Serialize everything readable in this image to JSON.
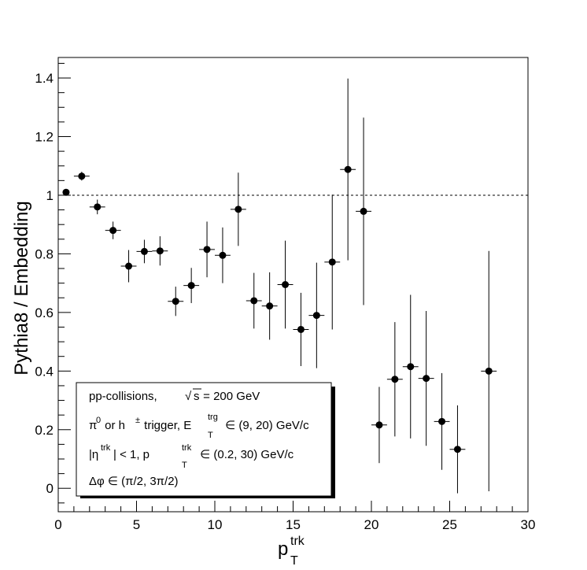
{
  "chart_data": {
    "type": "scatter",
    "xlabel": "p",
    "xlabel_sub": "T",
    "xlabel_sup": "trk",
    "ylabel": "Pythia8 / Embedding",
    "xlim": [
      0,
      30
    ],
    "ylim": [
      -0.08,
      1.47
    ],
    "x_ticks": [
      0,
      5,
      10,
      15,
      20,
      25,
      30
    ],
    "y_ticks": [
      0,
      0.2,
      0.4,
      0.6,
      0.8,
      1,
      1.2,
      1.4
    ],
    "x_tick_labels": [
      "0",
      "5",
      "10",
      "15",
      "20",
      "25",
      "30"
    ],
    "y_tick_labels": [
      "0",
      "0.2",
      "0.4",
      "0.6",
      "0.8",
      "1",
      "1.2",
      "1.4"
    ],
    "grid": false,
    "reference_line": {
      "y": 1,
      "style": "dashed"
    },
    "points": [
      {
        "x": 0.5,
        "y": 1.01,
        "xerr": 0,
        "yerr": 0.008
      },
      {
        "x": 1.5,
        "y": 1.065,
        "xerr": 0.5,
        "yerr": 0.015
      },
      {
        "x": 2.5,
        "y": 0.96,
        "xerr": 0.5,
        "yerr": 0.025
      },
      {
        "x": 3.5,
        "y": 0.88,
        "xerr": 0.5,
        "yerr": 0.03
      },
      {
        "x": 4.5,
        "y": 0.758,
        "xerr": 0.5,
        "yerr": 0.055
      },
      {
        "x": 5.5,
        "y": 0.808,
        "xerr": 0.5,
        "yerr": 0.04
      },
      {
        "x": 6.5,
        "y": 0.81,
        "xerr": 0.5,
        "yerr": 0.05
      },
      {
        "x": 7.5,
        "y": 0.638,
        "xerr": 0.5,
        "yerr": 0.05
      },
      {
        "x": 8.5,
        "y": 0.692,
        "xerr": 0.5,
        "yerr": 0.06
      },
      {
        "x": 9.5,
        "y": 0.815,
        "xerr": 0.5,
        "yerr": 0.095
      },
      {
        "x": 10.5,
        "y": 0.795,
        "xerr": 0.5,
        "yerr": 0.095
      },
      {
        "x": 11.5,
        "y": 0.952,
        "xerr": 0.5,
        "yerr": 0.125
      },
      {
        "x": 12.5,
        "y": 0.64,
        "xerr": 0.5,
        "yerr": 0.095
      },
      {
        "x": 13.5,
        "y": 0.622,
        "xerr": 0.5,
        "yerr": 0.115
      },
      {
        "x": 14.5,
        "y": 0.695,
        "xerr": 0.5,
        "yerr": 0.15
      },
      {
        "x": 15.5,
        "y": 0.542,
        "xerr": 0.5,
        "yerr": 0.125
      },
      {
        "x": 16.5,
        "y": 0.59,
        "xerr": 0.5,
        "yerr": 0.18
      },
      {
        "x": 17.5,
        "y": 0.772,
        "xerr": 0.5,
        "yerr": 0.23
      },
      {
        "x": 18.5,
        "y": 1.088,
        "xerr": 0.5,
        "yerr": 0.31
      },
      {
        "x": 19.5,
        "y": 0.945,
        "xerr": 0.5,
        "yerr": 0.32
      },
      {
        "x": 20.5,
        "y": 0.216,
        "xerr": 0.5,
        "yerr": 0.13
      },
      {
        "x": 21.5,
        "y": 0.372,
        "xerr": 0.5,
        "yerr": 0.195
      },
      {
        "x": 22.5,
        "y": 0.415,
        "xerr": 0.5,
        "yerr": 0.245
      },
      {
        "x": 23.5,
        "y": 0.375,
        "xerr": 0.5,
        "yerr": 0.23
      },
      {
        "x": 24.5,
        "y": 0.228,
        "xerr": 0.5,
        "yerr": 0.165
      },
      {
        "x": 25.5,
        "y": 0.133,
        "xerr": 0.5,
        "yerr": 0.15
      },
      {
        "x": 27.5,
        "y": 0.4,
        "xerr": 0.5,
        "yerr": 0.41
      }
    ],
    "annotations": {
      "line1": {
        "prefix": "pp-collisions,  ",
        "sqrt_symbol": "√",
        "sqrt_arg": "s",
        "suffix": " = 200 GeV"
      },
      "line2": {
        "pi": "π",
        "pi_sup": "0",
        "mid": " or h",
        "h_sup": "±",
        "mid2": " trigger, E",
        "e_sup": "trg",
        "e_sub": "T",
        "suffix": " ∈ (9, 20) GeV/c"
      },
      "line3": {
        "prefix": "|η",
        "eta_sup": "trk",
        "mid": "| < 1, p",
        "p_sup": "trk",
        "p_sub": "T",
        "suffix": " ∈ (0.2, 30) GeV/c"
      },
      "line4": "Δφ ∈ (π/2, 3π/2)"
    }
  }
}
